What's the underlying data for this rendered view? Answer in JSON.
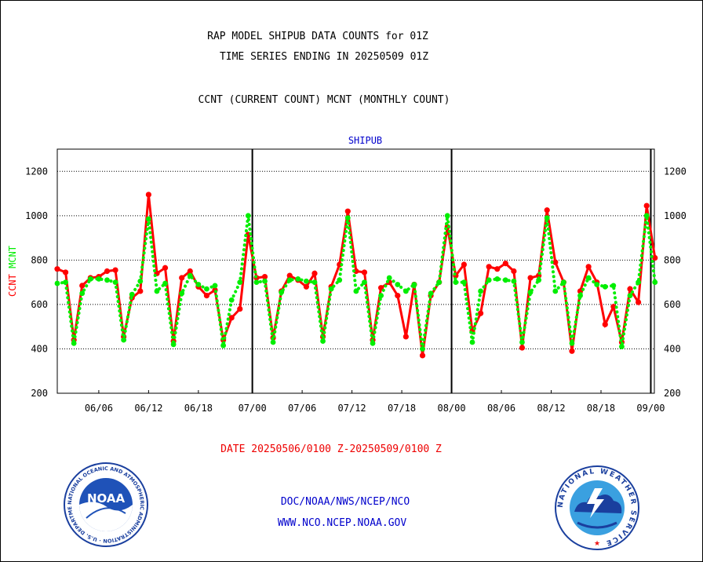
{
  "header": {
    "line1": "RAP MODEL SHIPUB DATA COUNTS for 01Z",
    "line2": "TIME SERIES ENDING IN 20250509 01Z",
    "line3": "CCNT (CURRENT COUNT) MCNT (MONTHLY COUNT)"
  },
  "footer": {
    "date_range": "DATE 20250506/0100 Z-20250509/0100 Z",
    "org": "DOC/NOAA/NWS/NCEP/NCO",
    "url": "WWW.NCO.NCEP.NOAA.GOV"
  },
  "logos": {
    "left": {
      "name": "noaa-logo",
      "text": "NOAA",
      "ring_text": "NATIONAL OCEANIC AND ATMOSPHERIC ADMINISTRATION · U.S. DEPARTMENT OF COMMERCE"
    },
    "right": {
      "name": "nws-logo",
      "ring_text": "NATIONAL WEATHER SERVICE"
    }
  },
  "colors": {
    "ccnt": "#ff0000",
    "mcnt": "#00ee00",
    "title_blue": "#0000cc",
    "date_red": "#ee0000"
  },
  "chart_data": {
    "type": "line",
    "title": "SHIPUB",
    "ylabel_parts": [
      {
        "text": "CCNT",
        "color": "#ff0000"
      },
      {
        "text": "MCNT",
        "color": "#00ee00"
      }
    ],
    "ylim": [
      200,
      1300
    ],
    "yticks": [
      200,
      400,
      600,
      800,
      1000,
      1200
    ],
    "x_tick_labels": [
      {
        "i": 5,
        "label": "06/06"
      },
      {
        "i": 11,
        "label": "06/12"
      },
      {
        "i": 17,
        "label": "06/18"
      },
      {
        "i": 23.5,
        "label": "07/00"
      },
      {
        "i": 29.5,
        "label": "07/06"
      },
      {
        "i": 35.5,
        "label": "07/12"
      },
      {
        "i": 41.5,
        "label": "07/18"
      },
      {
        "i": 47.5,
        "label": "08/00"
      },
      {
        "i": 53.5,
        "label": "08/06"
      },
      {
        "i": 59.5,
        "label": "08/12"
      },
      {
        "i": 65.5,
        "label": "08/18"
      },
      {
        "i": 71.5,
        "label": "09/00"
      }
    ],
    "day_boundaries": [
      23.5,
      47.5,
      71.5
    ],
    "grid": "horizontal dotted",
    "n_points": 73,
    "series": [
      {
        "name": "CCNT",
        "style": "solid",
        "color": "#ff0000",
        "values": [
          760,
          745,
          440,
          685,
          720,
          725,
          750,
          755,
          455,
          630,
          660,
          1095,
          740,
          765,
          435,
          720,
          750,
          680,
          640,
          665,
          440,
          540,
          580,
          915,
          720,
          725,
          450,
          660,
          730,
          710,
          680,
          740,
          455,
          680,
          780,
          1020,
          750,
          745,
          440,
          675,
          700,
          640,
          455,
          690,
          370,
          640,
          700,
          950,
          730,
          780,
          480,
          560,
          770,
          760,
          785,
          750,
          405,
          720,
          730,
          1025,
          790,
          700,
          390,
          660,
          770,
          700,
          510,
          590,
          430,
          670,
          610,
          1045,
          810
        ]
      },
      {
        "name": "MCNT",
        "style": "dotted",
        "color": "#00ee00",
        "values": [
          695,
          700,
          425,
          650,
          715,
          715,
          710,
          700,
          440,
          645,
          705,
          985,
          660,
          695,
          420,
          650,
          730,
          690,
          670,
          685,
          415,
          620,
          700,
          1000,
          700,
          705,
          430,
          655,
          710,
          715,
          705,
          700,
          435,
          670,
          710,
          990,
          660,
          700,
          425,
          640,
          720,
          690,
          660,
          690,
          400,
          650,
          700,
          1000,
          700,
          700,
          430,
          660,
          710,
          715,
          710,
          705,
          430,
          655,
          710,
          990,
          660,
          700,
          425,
          640,
          720,
          690,
          680,
          685,
          410,
          640,
          700,
          1000,
          700
        ]
      }
    ]
  }
}
